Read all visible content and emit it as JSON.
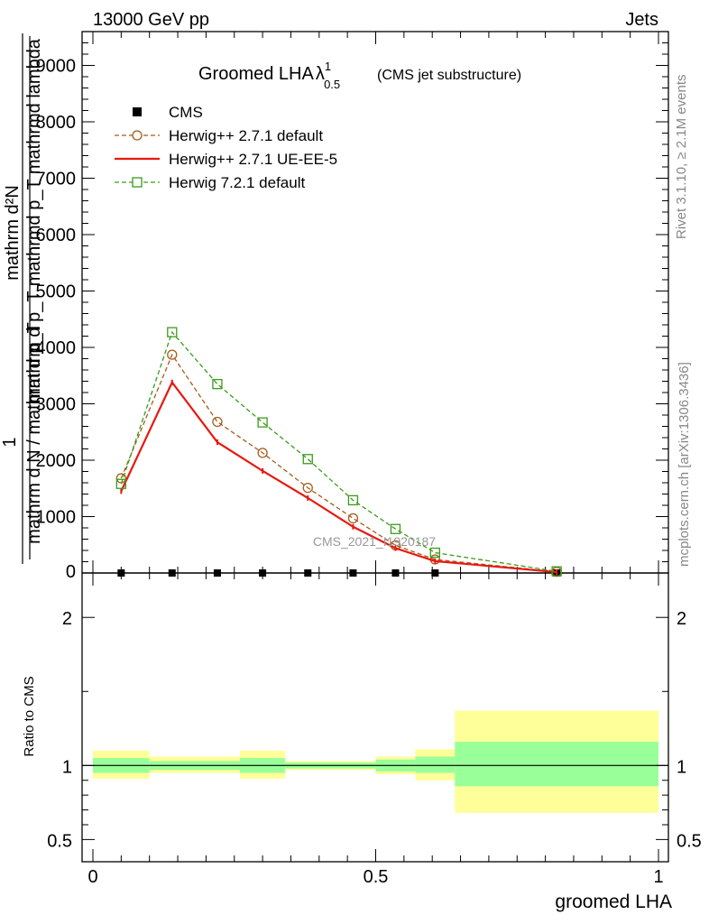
{
  "header": {
    "energy_label": "13000 GeV pp",
    "category_label": "Jets",
    "rivet_label": "Rivet 3.1.10, ≥ 2.1M events",
    "mcplots_label": "mcplots.cern.ch [arXiv:1306.3436]",
    "analysis_id": "CMS_2021_I1920187"
  },
  "chart_data": [
    {
      "type": "line",
      "title": "Groomed LHA",
      "title_symbol": "λ",
      "title_superscript": "1",
      "title_subscript": "0.5",
      "subtitle": "(CMS jet substructure)",
      "ylabel_parts": {
        "numerator_top": "mathrm d²N",
        "numerator_bottom": "mathrm d p_T mathrmd p_T mathrmd lambda",
        "prefix": "1",
        "denominator": "mathrm d N / mathrm d p_T"
      },
      "ylim": [
        0,
        9600
      ],
      "y_ticks": [
        1000,
        2000,
        3000,
        4000,
        5000,
        6000,
        7000,
        8000,
        9000
      ],
      "y_tick_labels": [
        "1000",
        "2000",
        "3000",
        "4000",
        "5000",
        "6000",
        "7000",
        "8000",
        "9000"
      ],
      "y_zero_label": "0",
      "xlim": [
        0,
        1
      ],
      "legend_position": "top-left",
      "x": [
        0.05,
        0.14,
        0.22,
        0.3,
        0.38,
        0.46,
        0.535,
        0.605,
        0.82
      ],
      "series": [
        {
          "name": "CMS",
          "style": "data-marker",
          "color": "#000000",
          "values": [
            0,
            0,
            0,
            0,
            0,
            0,
            0,
            0,
            0
          ]
        },
        {
          "name": "Herwig++ 2.7.1 default",
          "style": "dashed-circle",
          "color": "#a65b1b",
          "values": [
            1680,
            3870,
            2680,
            2130,
            1510,
            970,
            490,
            240,
            20
          ]
        },
        {
          "name": "Herwig++ 2.7.1 UE-EE-5",
          "style": "solid",
          "color": "#e8180f",
          "values": [
            1450,
            3380,
            2320,
            1810,
            1330,
            820,
            440,
            210,
            15
          ]
        },
        {
          "name": "Herwig 7.2.1 default",
          "style": "dashed-square",
          "color": "#3a9c1a",
          "values": [
            1580,
            4270,
            3350,
            2670,
            2020,
            1290,
            780,
            360,
            30
          ]
        }
      ]
    },
    {
      "type": "area",
      "ylabel": "Ratio to CMS",
      "xlabel": "groomed LHA",
      "ylim": [
        0.35,
        2.3
      ],
      "xlim": [
        0,
        1
      ],
      "y_ticks": [
        0.5,
        1,
        2
      ],
      "y_tick_labels": [
        "0.5",
        "1",
        "2"
      ],
      "x_ticks": [
        0,
        0.5,
        1
      ],
      "x_tick_labels": [
        "0",
        "0.5",
        "1"
      ],
      "bins": [
        {
          "lo": 0.0,
          "hi": 0.1,
          "stat_lo": 0.95,
          "stat_hi": 1.05,
          "tot_lo": 0.91,
          "tot_hi": 1.1
        },
        {
          "lo": 0.1,
          "hi": 0.26,
          "stat_lo": 0.97,
          "stat_hi": 1.03,
          "tot_lo": 0.95,
          "tot_hi": 1.06
        },
        {
          "lo": 0.26,
          "hi": 0.34,
          "stat_lo": 0.95,
          "stat_hi": 1.05,
          "tot_lo": 0.91,
          "tot_hi": 1.1
        },
        {
          "lo": 0.34,
          "hi": 0.5,
          "stat_lo": 0.98,
          "stat_hi": 1.02,
          "tot_lo": 0.97,
          "tot_hi": 1.03
        },
        {
          "lo": 0.5,
          "hi": 0.57,
          "stat_lo": 0.96,
          "stat_hi": 1.04,
          "tot_lo": 0.94,
          "tot_hi": 1.06
        },
        {
          "lo": 0.57,
          "hi": 0.64,
          "stat_lo": 0.95,
          "stat_hi": 1.06,
          "tot_lo": 0.9,
          "tot_hi": 1.11
        },
        {
          "lo": 0.64,
          "hi": 1.0,
          "stat_lo": 0.86,
          "stat_hi": 1.16,
          "tot_lo": 0.68,
          "tot_hi": 1.37
        }
      ],
      "stat_color": "#99ff99",
      "total_color": "#ffff99"
    }
  ]
}
